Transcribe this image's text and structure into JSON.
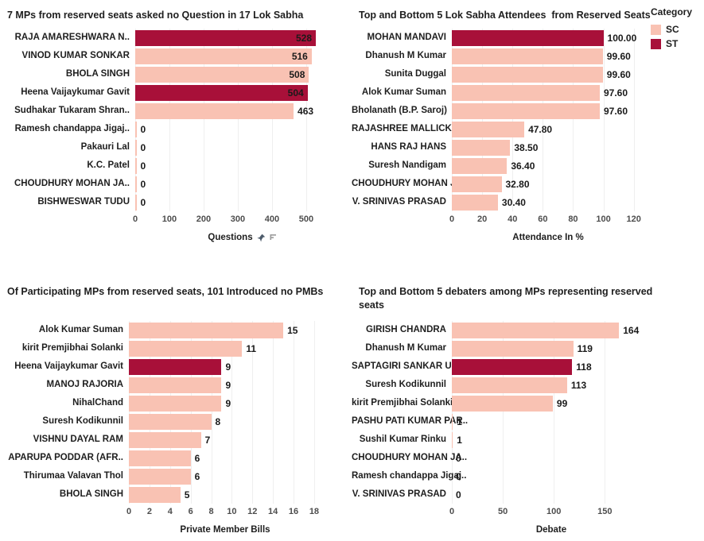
{
  "page": {
    "background": "#ffffff"
  },
  "legend": {
    "title": "Category",
    "items": [
      {
        "label": "SC",
        "color": "#f9c2b3"
      },
      {
        "label": "ST",
        "color": "#a81039"
      }
    ]
  },
  "chart_data": [
    {
      "type": "bar",
      "orientation": "horizontal",
      "title": "7 MPs from reserved seats asked no Question in 17 Lok Sabha",
      "xlabel": "Questions",
      "xlabel_icons": [
        "pin-icon",
        "sort-descending-icon"
      ],
      "xlim": [
        0,
        628
      ],
      "ticks": [
        0,
        100,
        200,
        300,
        400,
        500
      ],
      "grid": true,
      "zero_sliver": true,
      "rows": [
        {
          "label": "RAJA AMARESHWARA N..",
          "value": 528,
          "display": "528",
          "category": "ST",
          "label_inside": true
        },
        {
          "label": "VINOD KUMAR SONKAR",
          "value": 516,
          "display": "516",
          "category": "SC",
          "label_inside": true
        },
        {
          "label": "BHOLA SINGH",
          "value": 508,
          "display": "508",
          "category": "SC",
          "label_inside": true
        },
        {
          "label": "Heena Vaijaykumar Gavit",
          "value": 504,
          "display": "504",
          "category": "ST",
          "label_inside": true
        },
        {
          "label": "Sudhakar Tukaram Shran..",
          "value": 463,
          "display": "463",
          "category": "SC",
          "label_inside": false
        },
        {
          "label": "Ramesh chandappa Jigaj..",
          "value": 0,
          "display": "0",
          "category": "SC",
          "label_inside": false
        },
        {
          "label": "Pakauri Lal",
          "value": 0,
          "display": "0",
          "category": "SC",
          "label_inside": false
        },
        {
          "label": "K.C. Patel",
          "value": 0,
          "display": "0",
          "category": "SC",
          "label_inside": false
        },
        {
          "label": "CHOUDHURY MOHAN JA..",
          "value": 0,
          "display": "0",
          "category": "SC",
          "label_inside": false
        },
        {
          "label": "BISHWESWAR TUDU",
          "value": 0,
          "display": "0",
          "category": "SC",
          "label_inside": false
        }
      ]
    },
    {
      "type": "bar",
      "orientation": "horizontal",
      "title": "Top and Bottom 5 Lok Sabha Attendees  from Reserved Seats",
      "xlabel": "Attendance In %",
      "xlabel_icons": [],
      "xlim": [
        0,
        127
      ],
      "ticks": [
        0,
        20,
        40,
        60,
        80,
        100,
        120
      ],
      "grid": true,
      "zero_sliver": false,
      "rows": [
        {
          "label": "MOHAN MANDAVI",
          "value": 100,
          "display": "100.00",
          "category": "ST",
          "label_inside": false
        },
        {
          "label": "Dhanush M Kumar",
          "value": 99.6,
          "display": "99.60",
          "category": "SC",
          "label_inside": false
        },
        {
          "label": "Sunita Duggal",
          "value": 99.6,
          "display": "99.60",
          "category": "SC",
          "label_inside": false
        },
        {
          "label": "Alok Kumar Suman",
          "value": 97.6,
          "display": "97.60",
          "category": "SC",
          "label_inside": false
        },
        {
          "label": "Bholanath (B.P. Saroj)",
          "value": 97.6,
          "display": "97.60",
          "category": "SC",
          "label_inside": false
        },
        {
          "label": "RAJASHREE MALLICK",
          "value": 47.8,
          "display": "47.80",
          "category": "SC",
          "label_inside": false
        },
        {
          "label": "HANS RAJ HANS",
          "value": 38.5,
          "display": "38.50",
          "category": "SC",
          "label_inside": false
        },
        {
          "label": "Suresh Nandigam",
          "value": 36.4,
          "display": "36.40",
          "category": "SC",
          "label_inside": false
        },
        {
          "label": "CHOUDHURY MOHAN JA..",
          "value": 32.8,
          "display": "32.80",
          "category": "SC",
          "label_inside": false
        },
        {
          "label": "V. SRINIVAS PRASAD",
          "value": 30.4,
          "display": "30.40",
          "category": "SC",
          "label_inside": false
        }
      ]
    },
    {
      "type": "bar",
      "orientation": "horizontal",
      "title": "Of Participating MPs from reserved seats, 101 Introduced no PMBs",
      "xlabel": "Private Member Bills",
      "xlabel_icons": [],
      "xlim": [
        0,
        18.7
      ],
      "ticks": [
        0,
        2,
        4,
        6,
        8,
        10,
        12,
        14,
        16,
        18
      ],
      "grid": true,
      "zero_sliver": false,
      "rows": [
        {
          "label": "Alok Kumar Suman",
          "value": 15,
          "display": "15",
          "category": "SC",
          "label_inside": false
        },
        {
          "label": "kirit Premjibhai Solanki",
          "value": 11,
          "display": "11",
          "category": "SC",
          "label_inside": false
        },
        {
          "label": "Heena Vaijaykumar Gavit",
          "value": 9,
          "display": "9",
          "category": "ST",
          "label_inside": false
        },
        {
          "label": "MANOJ RAJORIA",
          "value": 9,
          "display": "9",
          "category": "SC",
          "label_inside": false
        },
        {
          "label": "NihalChand",
          "value": 9,
          "display": "9",
          "category": "SC",
          "label_inside": false
        },
        {
          "label": "Suresh Kodikunnil",
          "value": 8,
          "display": "8",
          "category": "SC",
          "label_inside": false
        },
        {
          "label": "VISHNU DAYAL RAM",
          "value": 7,
          "display": "7",
          "category": "SC",
          "label_inside": false
        },
        {
          "label": "APARUPA PODDAR (AFR..",
          "value": 6,
          "display": "6",
          "category": "SC",
          "label_inside": false
        },
        {
          "label": "Thirumaa Valavan Thol",
          "value": 6,
          "display": "6",
          "category": "SC",
          "label_inside": false
        },
        {
          "label": "BHOLA SINGH",
          "value": 5,
          "display": "5",
          "category": "SC",
          "label_inside": false
        }
      ]
    },
    {
      "type": "bar",
      "orientation": "horizontal",
      "title": "Top and Bottom 5 debaters among MPs representing reserved seats",
      "xlabel": "Debate",
      "xlabel_icons": [],
      "xlim": [
        0,
        195
      ],
      "ticks": [
        0,
        50,
        100,
        150
      ],
      "grid": true,
      "zero_sliver": false,
      "rows": [
        {
          "label": "GIRISH CHANDRA",
          "value": 164,
          "display": "164",
          "category": "SC",
          "label_inside": false
        },
        {
          "label": "Dhanush M Kumar",
          "value": 119,
          "display": "119",
          "category": "SC",
          "label_inside": false
        },
        {
          "label": "SAPTAGIRI SANKAR ULA..",
          "value": 118,
          "display": "118",
          "category": "ST",
          "label_inside": false
        },
        {
          "label": "Suresh Kodikunnil",
          "value": 113,
          "display": "113",
          "category": "SC",
          "label_inside": false
        },
        {
          "label": "kirit Premjibhai Solanki",
          "value": 99,
          "display": "99",
          "category": "SC",
          "label_inside": false
        },
        {
          "label": "PASHU PATI KUMAR PAR..",
          "value": 1,
          "display": "1",
          "category": "SC",
          "label_inside": false
        },
        {
          "label": "Sushil Kumar Rinku",
          "value": 1,
          "display": "1",
          "category": "SC",
          "label_inside": false
        },
        {
          "label": "CHOUDHURY MOHAN JA..",
          "value": 0,
          "display": "0",
          "category": "SC",
          "label_inside": false
        },
        {
          "label": "Ramesh chandappa Jigaj..",
          "value": 0,
          "display": "0",
          "category": "SC",
          "label_inside": false
        },
        {
          "label": "V. SRINIVAS PRASAD",
          "value": 0,
          "display": "0",
          "category": "SC",
          "label_inside": false
        }
      ]
    }
  ]
}
